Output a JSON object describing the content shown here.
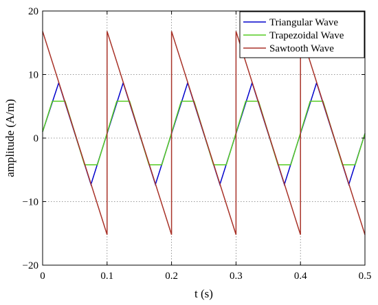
{
  "chart_data": {
    "type": "line",
    "title": "",
    "xlabel": "t (s)",
    "ylabel": "amplitude  (A/m)",
    "xlim": [
      0,
      0.5
    ],
    "ylim": [
      -20,
      20
    ],
    "xticks": [
      0,
      0.1,
      0.2,
      0.3,
      0.4,
      0.5
    ],
    "xtick_labels": [
      "0",
      "0.1",
      "0.2",
      "0.3",
      "0.4",
      "0.5"
    ],
    "yticks": [
      -20,
      -10,
      0,
      10,
      20
    ],
    "ytick_labels": [
      "−20",
      "−10",
      "0",
      "10",
      "20"
    ],
    "grid": true,
    "grid_style": "dotted",
    "legend_position": "top-right",
    "series": [
      {
        "name": "Triangular Wave",
        "color": "#0000cc",
        "x": [
          0,
          0.025,
          0.075,
          0.125,
          0.175,
          0.225,
          0.275,
          0.325,
          0.375,
          0.425,
          0.475,
          0.5
        ],
        "y": [
          1,
          8.7,
          -7.3,
          8.7,
          -7.3,
          8.7,
          -7.3,
          8.7,
          -7.3,
          8.7,
          -7.3,
          0.7
        ]
      },
      {
        "name": "Trapezoidal Wave",
        "color": "#55cc22",
        "x": [
          0,
          0.015,
          0.035,
          0.065,
          0.085,
          0.115,
          0.135,
          0.165,
          0.185,
          0.215,
          0.235,
          0.265,
          0.285,
          0.315,
          0.335,
          0.365,
          0.385,
          0.415,
          0.435,
          0.465,
          0.485,
          0.5
        ],
        "y": [
          1,
          5.8,
          5.8,
          -4.2,
          -4.2,
          5.8,
          5.8,
          -4.2,
          -4.2,
          5.8,
          5.8,
          -4.2,
          -4.2,
          5.8,
          5.8,
          -4.2,
          -4.2,
          5.8,
          5.8,
          -4.2,
          -4.2,
          0.7
        ]
      },
      {
        "name": "Sawtooth Wave",
        "color": "#a83228",
        "x": [
          0,
          0.1,
          0.1,
          0.2,
          0.2,
          0.3,
          0.3,
          0.4,
          0.4,
          0.5
        ],
        "y": [
          16.8,
          -15.2,
          16.8,
          -15.2,
          16.8,
          -15.2,
          16.8,
          -15.2,
          16.8,
          -15.2
        ]
      }
    ]
  }
}
